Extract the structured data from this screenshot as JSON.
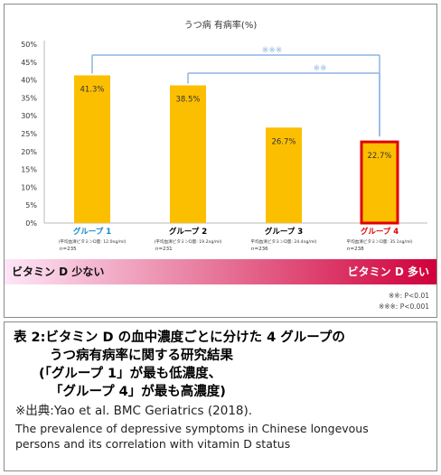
{
  "chart_data": {
    "type": "bar",
    "title": "うつ病 有病率(%)",
    "categories": [
      "グループ 1",
      "グループ 2",
      "グループ 3",
      "グループ 4"
    ],
    "values": [
      41.3,
      38.5,
      26.7,
      22.7
    ],
    "value_labels": [
      "41.3%",
      "38.5%",
      "26.7%",
      "22.7%"
    ],
    "sub_labels": [
      "(平均血清ビタミンD量: 12.0ng/ml)",
      "(平均血清ビタミンD量: 19.2ng/ml)",
      "平均血清ビタミンD量: 24.4ng/ml)",
      "平均血清ビタミンD量: 35.1ng/ml)"
    ],
    "n_labels": [
      "n=235",
      "n=231",
      "n=236",
      "n=238"
    ],
    "ylim": [
      0,
      50
    ],
    "yticks": [
      "0%",
      "5%",
      "10%",
      "15%",
      "20%",
      "25%",
      "30%",
      "35%",
      "40%",
      "45%",
      "50%"
    ],
    "grid": false,
    "bar_color": "#fcbf00",
    "highlight_bar": 3,
    "highlight_border": "#e00000",
    "category_colors": [
      "#0f86c8",
      "#000000",
      "#000000",
      "#e00000"
    ],
    "significance": [
      {
        "from": 0,
        "to": 3,
        "label": "※※※"
      },
      {
        "from": 1,
        "to": 3,
        "label": "※※"
      }
    ],
    "significance_color": "#8db4e2",
    "gradient_bar": {
      "left_label": "ビタミン D 少ない",
      "right_label": "ビタミン D 多い",
      "from_color": "#fde6f6",
      "to_color": "#d0003a"
    },
    "legend_notes": [
      "※※: P<0.01",
      "※※※: P<0.001"
    ]
  },
  "caption": {
    "title_line1": "表 2:ビタミン D の血中濃度ごとに分けた 4 グループの",
    "title_line2": "うつ病有病率に関する研究結果",
    "title_line3": "(「グループ 1」が最も低濃度、",
    "title_line4": "「グループ 4」が最も高濃度)",
    "source": "※出典:Yao et al. BMC Geriatrics (2018).",
    "paper_line1": "The prevalence of depressive symptoms in Chinese longevous",
    "paper_line2": "persons and its correlation with vitamin D status"
  }
}
